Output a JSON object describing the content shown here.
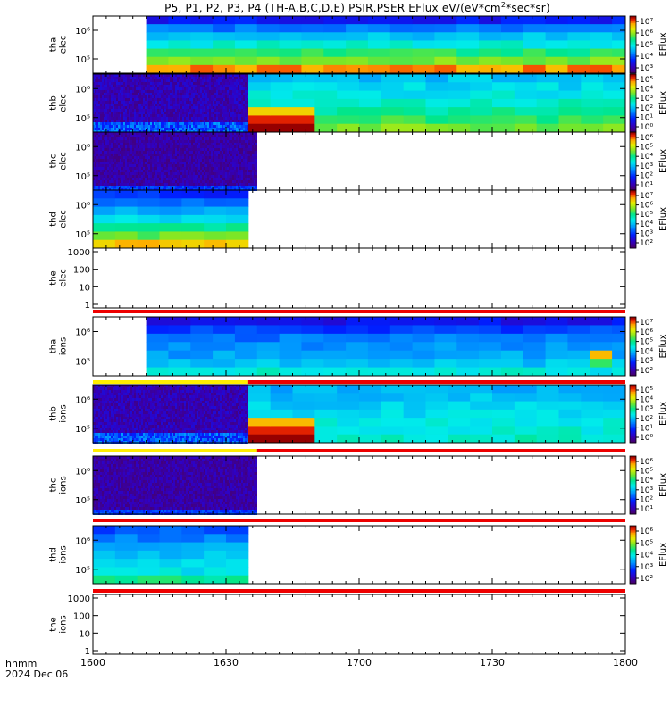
{
  "title": "P5, P1, P2, P3, P4 (TH-A,B,C,D,E) PSIR,PSER EFlux eV/(eV*cm²*sec*sr)",
  "title_parts": {
    "pre": "P5, P1, P2, P3, P4 (TH-A,B,C,D,E) PSIR,PSER EFlux eV/(eV*cm",
    "sup": "2",
    "post": "*sec*sr)"
  },
  "footer": {
    "label1": "hhmm",
    "label2": "2024 Dec 06"
  },
  "colors": {
    "flag_red": "#ee0000",
    "flag_yellow": "#ffee00",
    "axis": "#000000"
  },
  "chart_data": {
    "type": "heatmap",
    "colormap": "rainbow",
    "xaxis": {
      "label": "hhmm",
      "ticks": [
        "1600",
        "1630",
        "1700",
        "1730",
        "1800"
      ],
      "range_minutes": [
        0,
        120
      ],
      "date": "2024 Dec 06"
    },
    "panels": [
      {
        "id": "tha-elec",
        "ylabel": [
          "tha",
          "elec"
        ],
        "kind": "spectrogram",
        "yticks": [
          {
            "e": 6,
            "label": "10⁶"
          },
          {
            "e": 5,
            "label": "10⁵"
          }
        ],
        "coverage_minutes": [
          12,
          120
        ],
        "base": [
          0.2,
          0.32,
          0.42,
          0.5,
          0.6,
          0.68,
          0.88
        ],
        "colorbar": {
          "label": "EFlux",
          "ticks": [
            "10⁷",
            "10⁶",
            "10⁵",
            "10⁴",
            "10³"
          ]
        }
      },
      {
        "id": "thb-elec",
        "ylabel": [
          "thb",
          "elec"
        ],
        "kind": "spectrogram_noisy",
        "yticks": [
          {
            "e": 6,
            "label": "10⁶"
          },
          {
            "e": 5,
            "label": "10⁵"
          }
        ],
        "noisy_until_minutes": 35,
        "coverage_minutes": [
          0,
          120
        ],
        "base": [
          0.42,
          0.45,
          0.48,
          0.52,
          0.56,
          0.62,
          0.68
        ],
        "hotspot": {
          "x_minutes": [
            35,
            49
          ],
          "levels": [
            0.82,
            0.95,
            1.0
          ]
        },
        "colorbar": {
          "label": "EFlux",
          "ticks": [
            "10⁵",
            "10⁴",
            "10³",
            "10²",
            "10¹",
            "10⁰"
          ]
        }
      },
      {
        "id": "thc-elec",
        "ylabel": [
          "thc",
          "elec"
        ],
        "kind": "noise_only",
        "yticks": [
          {
            "e": 6,
            "label": "10⁶"
          },
          {
            "e": 5,
            "label": "10⁵"
          }
        ],
        "coverage_minutes": [
          0,
          37
        ],
        "colorbar": {
          "label": "EFlux",
          "ticks": [
            "10⁶",
            "10⁵",
            "10⁴",
            "10³",
            "10²",
            "10¹"
          ]
        }
      },
      {
        "id": "thd-elec",
        "ylabel": [
          "thd",
          "elec"
        ],
        "kind": "spectrogram",
        "yticks": [
          {
            "e": 6,
            "label": "10⁶"
          },
          {
            "e": 5,
            "label": "10⁵"
          }
        ],
        "coverage_minutes": [
          0,
          35
        ],
        "base": [
          0.24,
          0.3,
          0.38,
          0.46,
          0.56,
          0.66,
          0.85
        ],
        "colorbar": {
          "label": "EFlux",
          "ticks": [
            "10⁷",
            "10⁶",
            "10⁵",
            "10⁴",
            "10³",
            "10²"
          ]
        }
      },
      {
        "id": "the-elec",
        "ylabel": [
          "the",
          "elec"
        ],
        "kind": "line_empty",
        "yticks_linear": [
          "1000",
          "100",
          "10",
          "1"
        ],
        "flag": "red"
      },
      {
        "id": "tha-ions",
        "ylabel": [
          "tha",
          "ions"
        ],
        "kind": "spectrogram",
        "yticks": [
          {
            "e": 6,
            "label": "10⁶"
          },
          {
            "e": 5,
            "label": "10⁵"
          }
        ],
        "coverage_minutes": [
          12,
          120
        ],
        "base": [
          0.18,
          0.26,
          0.32,
          0.36,
          0.38,
          0.42,
          0.5
        ],
        "hotspot": {
          "x_minutes": [
            108,
            114
          ],
          "levels": [
            0.85,
            0.62,
            0.45
          ]
        },
        "colorbar": {
          "label": "EFlux",
          "ticks": [
            "10⁷",
            "10⁶",
            "10⁵",
            "10⁴",
            "10³",
            "10²"
          ]
        },
        "flag": "yellow_red",
        "flag_split_minutes": 35
      },
      {
        "id": "thb-ions",
        "ylabel": [
          "thb",
          "ions"
        ],
        "kind": "spectrogram_noisy",
        "yticks": [
          {
            "e": 6,
            "label": "10⁶"
          },
          {
            "e": 5,
            "label": "10⁵"
          }
        ],
        "noisy_until_minutes": 35,
        "coverage_minutes": [
          0,
          120
        ],
        "base": [
          0.4,
          0.42,
          0.44,
          0.46,
          0.48,
          0.5,
          0.52
        ],
        "hotspot": {
          "x_minutes": [
            35,
            49
          ],
          "levels": [
            0.85,
            0.95,
            1.0
          ]
        },
        "colorbar": {
          "label": "EFlux",
          "ticks": [
            "10⁵",
            "10⁴",
            "10³",
            "10²",
            "10¹",
            "10⁰"
          ]
        },
        "flag": "yellow_red",
        "flag_split_minutes": 37
      },
      {
        "id": "thc-ions",
        "ylabel": [
          "thc",
          "ions"
        ],
        "kind": "noise_only",
        "yticks": [
          {
            "e": 6,
            "label": "10⁶"
          },
          {
            "e": 5,
            "label": "10⁵"
          }
        ],
        "coverage_minutes": [
          0,
          37
        ],
        "colorbar": {
          "label": "EFlux",
          "ticks": [
            "10⁶",
            "10⁵",
            "10⁴",
            "10³",
            "10²",
            "10¹"
          ]
        },
        "flag": "red"
      },
      {
        "id": "thd-ions",
        "ylabel": [
          "thd",
          "ions"
        ],
        "kind": "spectrogram",
        "yticks": [
          {
            "e": 6,
            "label": "10⁶"
          },
          {
            "e": 5,
            "label": "10⁵"
          }
        ],
        "coverage_minutes": [
          0,
          35
        ],
        "base": [
          0.28,
          0.34,
          0.4,
          0.42,
          0.44,
          0.48,
          0.58
        ],
        "colorbar": {
          "label": "EFlux",
          "ticks": [
            "10⁶",
            "10⁵",
            "10⁴",
            "10³",
            "10²"
          ]
        },
        "flag": "red"
      },
      {
        "id": "the-ions",
        "ylabel": [
          "the",
          "ions"
        ],
        "kind": "line_empty",
        "yticks_linear": [
          "1000",
          "100",
          "10",
          "1"
        ]
      }
    ]
  }
}
